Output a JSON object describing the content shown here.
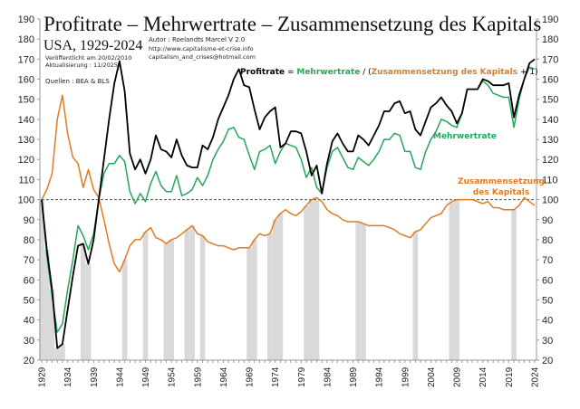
{
  "header": {
    "title": "Profitrate – Mehrwertrate – Zusammensetzung des Kapitals",
    "subtitle": "USA, 1929-2024",
    "author": "Autor : Roelandts Marcel  V  2.0",
    "website": "http://www.capitalisme-et-crise.info",
    "email": "capitalism_and_crises@hotmail.com",
    "published": "Veröffentlicht am 20/02/2010",
    "updated": "Aktualisierung : 11/2025",
    "sources": "Quellen : BEA & BLS"
  },
  "formula": {
    "p1": "Profitrate",
    "p2": " = ",
    "p3": "Mehrwertrate",
    "p4": " / (",
    "p5": "Zusammensetzung des Kapitals",
    "p6": " + 1)"
  },
  "labels": {
    "mehrwertrate": "Mehrwertrate",
    "zus_line1": "Zusammensetzung",
    "zus_line2": "des Kapitals"
  },
  "colors": {
    "profitrate": "#000000",
    "mehrwertrate": "#22a85a",
    "zusammensetzung": "#e07b22",
    "recession": "#d9d9d9",
    "reference": "#555555"
  },
  "chart_data": {
    "type": "line",
    "x_start": 1929,
    "x_end": 2024,
    "ylim": [
      20,
      190
    ],
    "y_ticks": [
      20,
      30,
      40,
      50,
      60,
      70,
      80,
      90,
      100,
      110,
      120,
      130,
      140,
      150,
      160,
      170,
      180,
      190
    ],
    "x_tick_labels": [
      1929,
      1934,
      1939,
      1944,
      1949,
      1954,
      1959,
      1964,
      1969,
      1974,
      1979,
      1984,
      1989,
      1994,
      1999,
      2004,
      2009,
      2014,
      2019,
      2024
    ],
    "reference_line": 100,
    "grid": false,
    "recession_years": [
      1929,
      1930,
      1931,
      1932,
      1933,
      1937,
      1938,
      1945,
      1949,
      1953,
      1954,
      1957,
      1958,
      1960,
      1969,
      1970,
      1973,
      1974,
      1975,
      1980,
      1981,
      1982,
      1990,
      1991,
      2001,
      2008,
      2009,
      2020
    ],
    "series": [
      {
        "name": "Profitrate",
        "key": "profitrate",
        "values": [
          100,
          75,
          55,
          26,
          28,
          45,
          62,
          77,
          78,
          68,
          80,
          100,
          120,
          140,
          158,
          169,
          154,
          123,
          115,
          120,
          113,
          120,
          132,
          125,
          124,
          121,
          130,
          122,
          117,
          116,
          116,
          127,
          125,
          131,
          140,
          146,
          152,
          160,
          165,
          157,
          156,
          145,
          135,
          141,
          144,
          146,
          126,
          128,
          134,
          134,
          133,
          124,
          112,
          117,
          103,
          118,
          129,
          133,
          128,
          124,
          124,
          132,
          130,
          127,
          132,
          137,
          144,
          144,
          148,
          149,
          143,
          144,
          135,
          132,
          139,
          146,
          148,
          151,
          147,
          144,
          138,
          143,
          155,
          155,
          155,
          160,
          159,
          157,
          157,
          157,
          158,
          141,
          152,
          160,
          168,
          170
        ]
      },
      {
        "name": "Mehrwertrate",
        "key": "mehrwertrate",
        "values": [
          100,
          72,
          52,
          34,
          38,
          55,
          70,
          87,
          82,
          75,
          83,
          100,
          113,
          118,
          118,
          122,
          119,
          104,
          98,
          103,
          99,
          108,
          114,
          107,
          104,
          104,
          112,
          102,
          103,
          105,
          111,
          107,
          112,
          120,
          125,
          129,
          135,
          136,
          131,
          130,
          122,
          115,
          124,
          125,
          127,
          118,
          124,
          128,
          127,
          126,
          120,
          111,
          116,
          106,
          103,
          116,
          124,
          126,
          121,
          116,
          115,
          121,
          119,
          117,
          120,
          124,
          130,
          130,
          133,
          132,
          124,
          124,
          116,
          115,
          124,
          130,
          134,
          140,
          139,
          137,
          136,
          143,
          155,
          155,
          155,
          159,
          157,
          153,
          152,
          151,
          151,
          136,
          150,
          160,
          166,
          165
        ]
      },
      {
        "name": "Zusammensetzung des Kapitals",
        "key": "zusammensetzung",
        "values": [
          100,
          105,
          113,
          140,
          152,
          133,
          121,
          118,
          106,
          115,
          105,
          101,
          90,
          78,
          68,
          64,
          70,
          77,
          80,
          80,
          84,
          86,
          81,
          80,
          78,
          80,
          81,
          83,
          85,
          87,
          83,
          82,
          79,
          78,
          77,
          77,
          76,
          75,
          76,
          76,
          76,
          80,
          83,
          82,
          83,
          90,
          93,
          95,
          93,
          92,
          94,
          97,
          100,
          101,
          99,
          95,
          93,
          92,
          90,
          89,
          89,
          89,
          88,
          87,
          87,
          87,
          87,
          86,
          85,
          83,
          82,
          81,
          84,
          85,
          88,
          91,
          92,
          93,
          97,
          99,
          100,
          100,
          100,
          100,
          99,
          98,
          99,
          96,
          96,
          95,
          95,
          95,
          97,
          101,
          99,
          97
        ]
      }
    ]
  }
}
